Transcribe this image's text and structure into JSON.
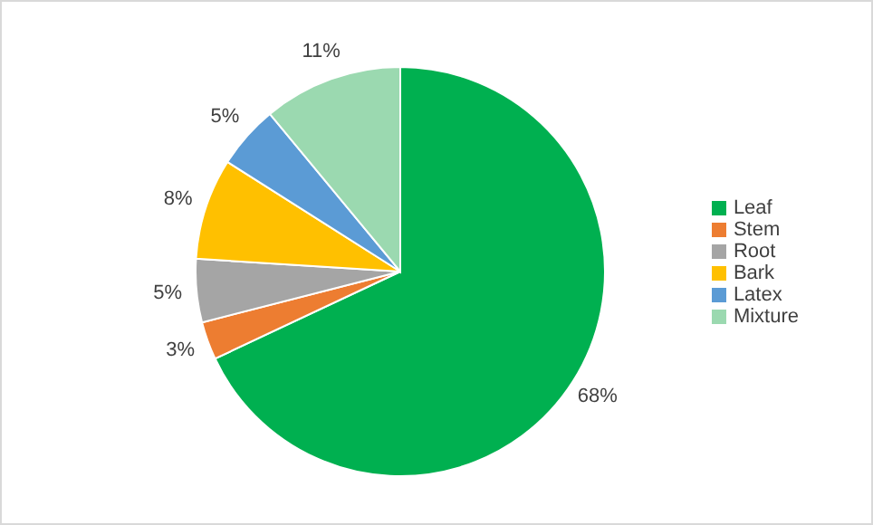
{
  "chart_data": {
    "type": "pie",
    "categories": [
      "Leaf",
      "Stem",
      "Root",
      "Bark",
      "Latex",
      "Mixture"
    ],
    "values": [
      68,
      3,
      5,
      8,
      5,
      11
    ],
    "colors": [
      "#00b050",
      "#ed7d31",
      "#a5a5a5",
      "#ffc000",
      "#5b9bd5",
      "#9bd9b0"
    ],
    "value_labels": [
      "68%",
      "3%",
      "5%",
      "8%",
      "5%",
      "11%"
    ],
    "legend": "right"
  }
}
